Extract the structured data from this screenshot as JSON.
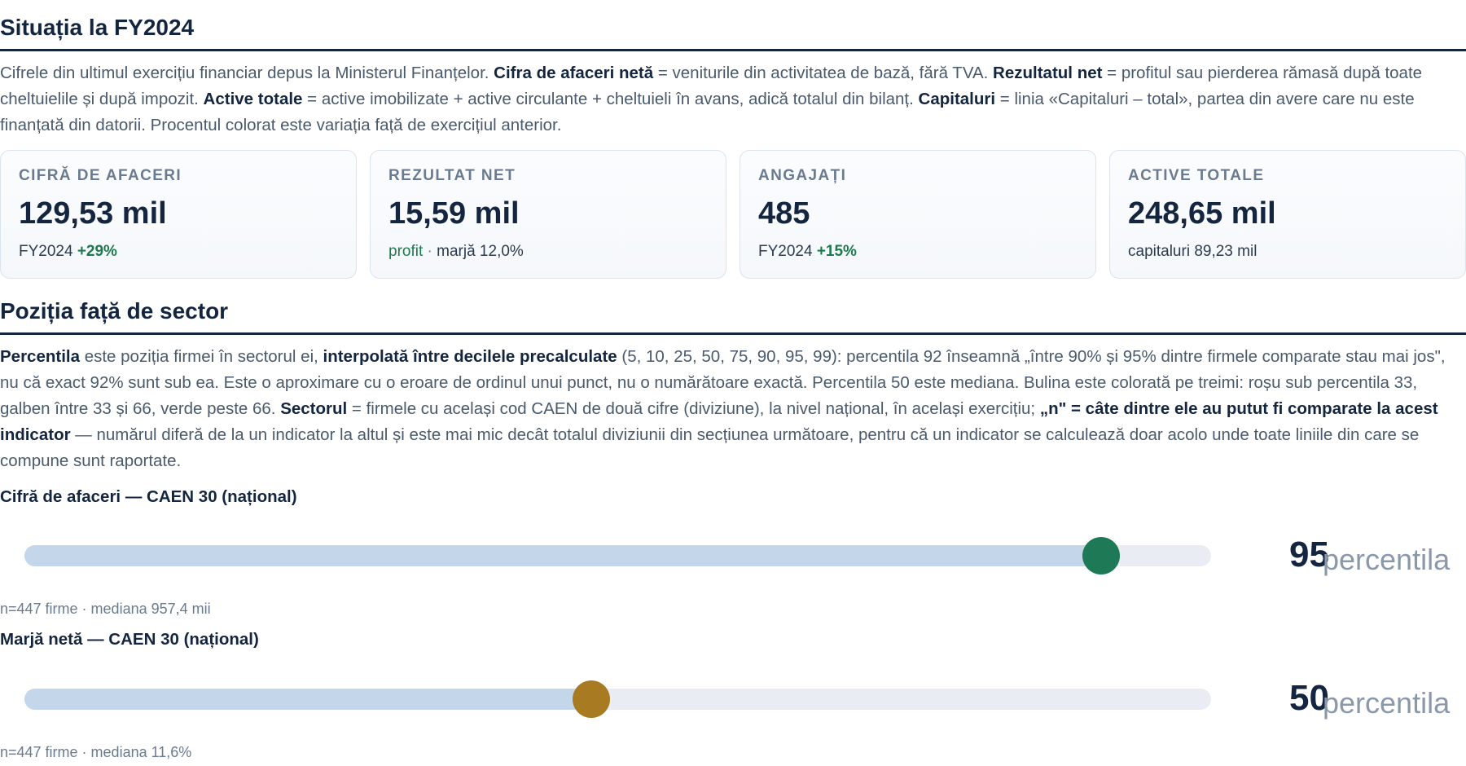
{
  "situation": {
    "title": "Situația la FY2024",
    "intro": [
      {
        "t": "Cifrele din ultimul exercițiu financiar depus la Ministerul Finanțelor. ",
        "b": false
      },
      {
        "t": "Cifra de afaceri netă",
        "b": true
      },
      {
        "t": " = veniturile din activitatea de bază, fără TVA. ",
        "b": false
      },
      {
        "t": "Rezultatul net",
        "b": true
      },
      {
        "t": " = profitul sau pierderea rămasă după toate cheltuielile și după impozit. ",
        "b": false
      },
      {
        "t": "Active totale",
        "b": true
      },
      {
        "t": " = active imobilizate + active circulante + cheltuieli în avans, adică totalul din bilanț. ",
        "b": false
      },
      {
        "t": "Capitaluri",
        "b": true
      },
      {
        "t": " = linia «Capitaluri – total», partea din avere care nu este finanțată din datorii. Procentul colorat este variația față de exercițiul anterior.",
        "b": false
      }
    ],
    "cards": [
      {
        "label": "CIFRĂ DE AFACERI",
        "value": "129,53 mil",
        "sub_year": "FY2024",
        "sub_change": "+29%"
      },
      {
        "label": "REZULTAT NET",
        "value": "15,59 mil",
        "sub_profit": "profit",
        "sub_sep": " · ",
        "sub_margin": "marjă 12,0%"
      },
      {
        "label": "ANGAJAȚI",
        "value": "485",
        "sub_year": "FY2024",
        "sub_change": "+15%"
      },
      {
        "label": "ACTIVE TOTALE",
        "value": "248,65 mil",
        "sub_text": "capitaluri 89,23 mil"
      }
    ]
  },
  "sector": {
    "title": "Poziția față de sector",
    "intro": [
      {
        "t": "Percentila",
        "b": true
      },
      {
        "t": " este poziția firmei în sectorul ei, ",
        "b": false
      },
      {
        "t": "interpolată între decilele precalculate",
        "b": true
      },
      {
        "t": " (5, 10, 25, 50, 75, 90, 95, 99): percentila 92 înseamnă „între 90% și 95% dintre firmele comparate stau mai jos\", nu că exact 92% sunt sub ea. Este o aproximare cu o eroare de ordinul unui punct, nu o numărătoare exactă. Percentila 50 este mediana. Bulina este colorată pe treimi: roșu sub percentila 33, galben între 33 și 66, verde peste 66. ",
        "b": false
      },
      {
        "t": "Sectorul",
        "b": true
      },
      {
        "t": " = firmele cu același cod CAEN de două cifre (diviziune), la nivel național, în același exercițiu; ",
        "b": false
      },
      {
        "t": "„n\" = câte dintre ele au putut fi comparate la acest indicator",
        "b": true
      },
      {
        "t": " — numărul diferă de la un indicator la altul și este mai mic decât totalul diviziunii din secțiunea următoare, pentru că un indicator se calculează doar acolo unde toate liniile din care se compune sunt raportate.",
        "b": false
      }
    ],
    "metrics": [
      {
        "title": "Cifră de afaceri — CAEN 30 (național)",
        "percentile": 95,
        "percentile_label": "percentila",
        "color": "#1e7a56",
        "note": "n=447 firme · mediana 957,4 mii"
      },
      {
        "title": "Marjă netă — CAEN 30 (național)",
        "percentile": 50,
        "percentile_label": "percentila",
        "color": "#a87a22",
        "note": "n=447 firme · mediana 11,6%"
      }
    ]
  }
}
